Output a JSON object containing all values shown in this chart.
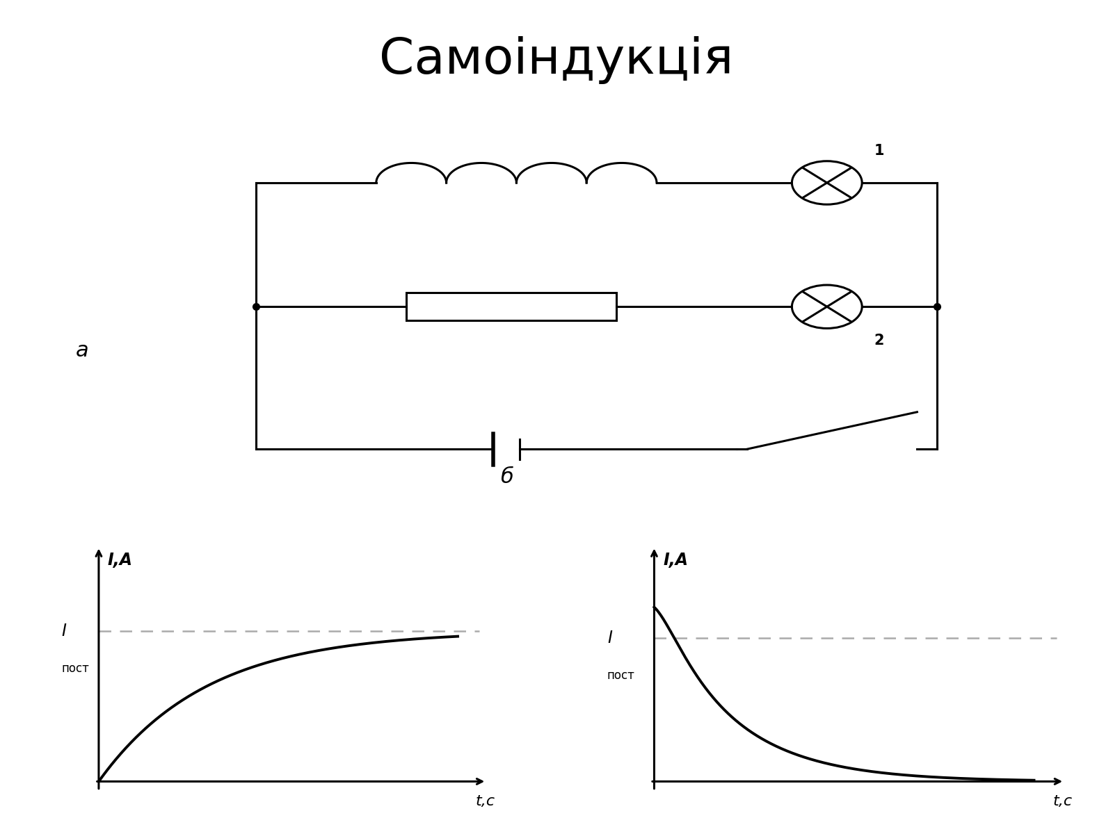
{
  "title": "Самоіндукція",
  "title_fontsize": 52,
  "bg_color": "#ffffff",
  "line_color": "#000000",
  "dashed_color": "#aaaaaa",
  "label_a": "а",
  "label_b": "б",
  "ylabel": "I,А",
  "xlabel": "t,с",
  "ipост_label": "Iпост",
  "tau1": 1.5,
  "tau2": 1.0,
  "I_max": 1.0
}
